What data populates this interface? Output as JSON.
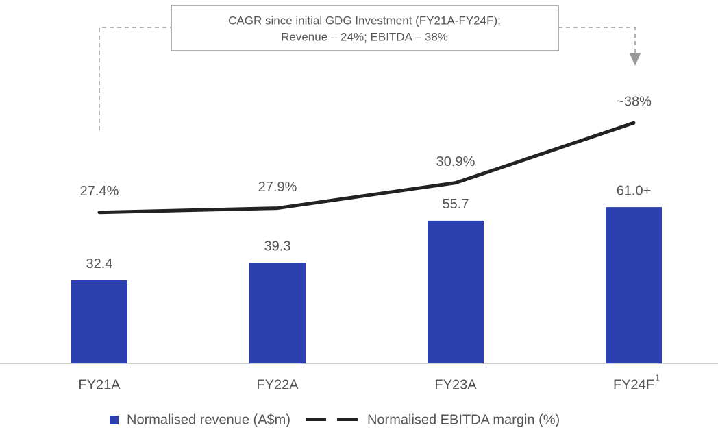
{
  "chart_data": {
    "type": "bar",
    "annotation": [
      "CAGR since initial GDG Investment (FY21A-FY24F):",
      "Revenue – 24%; EBITDA – 38%"
    ],
    "categories": [
      "FY21A",
      "FY22A",
      "FY23A",
      "FY24F"
    ],
    "category_notes": [
      null,
      null,
      null,
      "1"
    ],
    "series": [
      {
        "name": "Normalised revenue (A$m)",
        "type": "bar",
        "color": "#2c40b0",
        "values": [
          32.4,
          39.3,
          55.7,
          61.0
        ],
        "value_labels": [
          "32.4",
          "39.3",
          "55.7",
          "61.0+"
        ]
      },
      {
        "name": "Normalised EBITDA margin (%)",
        "type": "line",
        "axis": "y2",
        "color": "#222222",
        "values": [
          27.4,
          27.9,
          30.9,
          38
        ],
        "value_labels": [
          "27.4%",
          "27.9%",
          "30.9%",
          "~38%"
        ]
      }
    ],
    "ylim": [
      0,
      140
    ],
    "y2lim": [
      9.5,
      52
    ]
  }
}
